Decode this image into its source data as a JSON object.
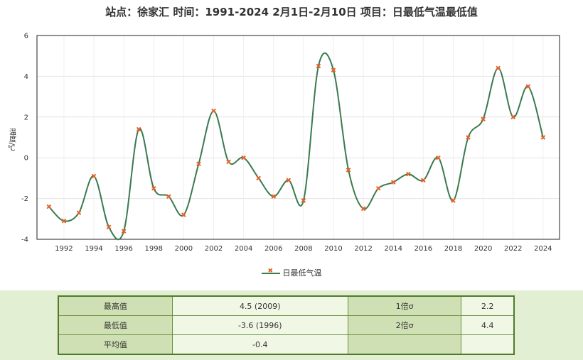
{
  "title": "站点：徐家汇 时间：1991-2024  2月1日-2月10日 项目：日最低气温最低值",
  "chart_data": {
    "type": "line",
    "title": "站点：徐家汇 时间：1991-2024  2月1日-2月10日 项目：日最低气温最低值",
    "ylabel": "温度/℃",
    "xlabel": "",
    "ylim": [
      -4,
      6
    ],
    "yticks": [
      "6",
      "4",
      "2",
      "0",
      "-2",
      "-4"
    ],
    "xticks": [
      "1992",
      "1994",
      "1996",
      "1998",
      "2000",
      "2002",
      "2004",
      "2006",
      "2008",
      "2010",
      "2012",
      "2014",
      "2016",
      "2018",
      "2020",
      "2022",
      "2024"
    ],
    "x": [
      1991,
      1992,
      1993,
      1994,
      1995,
      1996,
      1997,
      1998,
      1999,
      2000,
      2001,
      2002,
      2003,
      2004,
      2005,
      2006,
      2007,
      2008,
      2009,
      2010,
      2011,
      2012,
      2013,
      2014,
      2015,
      2016,
      2017,
      2018,
      2019,
      2020,
      2021,
      2022,
      2023,
      2024
    ],
    "series": [
      {
        "name": "日最低气温",
        "values": [
          -2.4,
          -3.1,
          -2.7,
          -0.9,
          -3.4,
          -3.6,
          1.4,
          -1.5,
          -1.9,
          -2.8,
          -0.3,
          2.3,
          -0.2,
          0.0,
          -1.0,
          -1.9,
          -1.1,
          -2.1,
          4.5,
          4.3,
          -0.6,
          -2.5,
          -1.5,
          -1.2,
          -0.8,
          -1.1,
          0.0,
          -2.1,
          1.0,
          1.9,
          4.4,
          2.0,
          3.5,
          1.0
        ]
      }
    ],
    "line_color": "#3a7a4e",
    "marker_color": "#e2622a",
    "legend_position": "bottom",
    "grid": true
  },
  "stats": {
    "rows": [
      {
        "label1": "最高值",
        "value1": "4.5 (2009)",
        "label2": "1倍σ",
        "value2": "2.2"
      },
      {
        "label1": "最低值",
        "value1": "-3.6 (1996)",
        "label2": "2倍σ",
        "value2": "4.4"
      },
      {
        "label1": "平均值",
        "value1": "-0.4",
        "label2": "",
        "value2": ""
      }
    ]
  }
}
